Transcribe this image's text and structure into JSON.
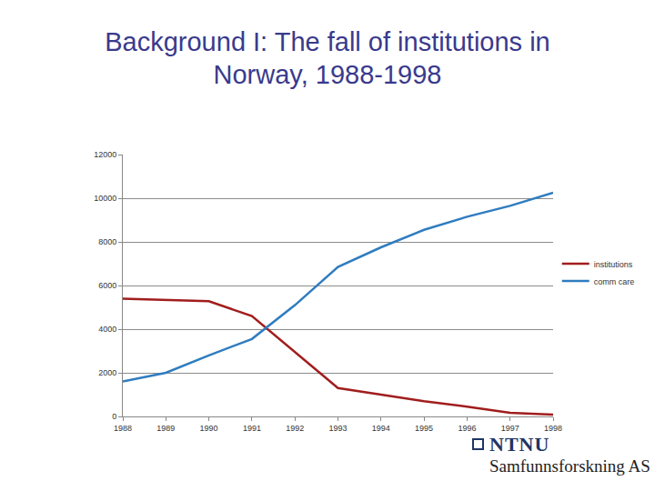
{
  "chart_data": {
    "type": "line",
    "title": "Background I: The fall of institutions in Norway, 1988-1998",
    "categories": [
      "1988",
      "1989",
      "1990",
      "1991",
      "1992",
      "1993",
      "1994",
      "1995",
      "1996",
      "1997",
      "1998"
    ],
    "series": [
      {
        "name": "institutions",
        "color": "#a11d1d",
        "values": [
          5400,
          5350,
          5280,
          4600,
          2950,
          1300,
          1000,
          700,
          450,
          170,
          80
        ]
      },
      {
        "name": "comm care",
        "color": "#2f7cbf",
        "values": [
          1600,
          2000,
          2800,
          3550,
          5100,
          6850,
          7750,
          8550,
          9150,
          9650,
          10250
        ]
      }
    ],
    "ylim": [
      0,
      12000
    ],
    "yticks": [
      0,
      2000,
      4000,
      6000,
      8000,
      10000,
      12000
    ],
    "grid": true,
    "legend": "right",
    "annotations": [
      "NTNU",
      "Samfunnsforskning AS"
    ]
  }
}
